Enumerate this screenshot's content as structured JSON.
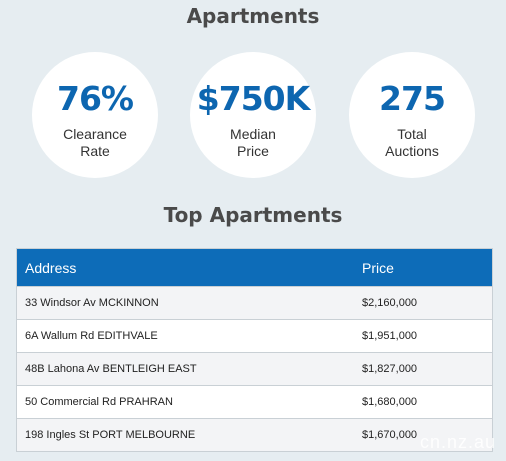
{
  "header": {
    "title": "Apartments"
  },
  "stats": [
    {
      "value": "76%",
      "label_line1": "Clearance",
      "label_line2": "Rate"
    },
    {
      "value": "$750K",
      "label_line1": "Median",
      "label_line2": "Price"
    },
    {
      "value": "275",
      "label_line1": "Total",
      "label_line2": "Auctions"
    }
  ],
  "top": {
    "title": "Top Apartments",
    "columns": [
      "Address",
      "Price"
    ],
    "rows": [
      {
        "address": "33 Windsor Av MCKINNON",
        "price": "$2,160,000"
      },
      {
        "address": "6A Wallum Rd EDITHVALE",
        "price": "$1,951,000"
      },
      {
        "address": "48B Lahona Av BENTLEIGH EAST",
        "price": "$1,827,000"
      },
      {
        "address": "50 Commercial Rd PRAHRAN",
        "price": "$1,680,000"
      },
      {
        "address": "198 Ingles St PORT MELBOURNE",
        "price": "$1,670,000"
      }
    ]
  },
  "watermark": "cn.nz.au"
}
